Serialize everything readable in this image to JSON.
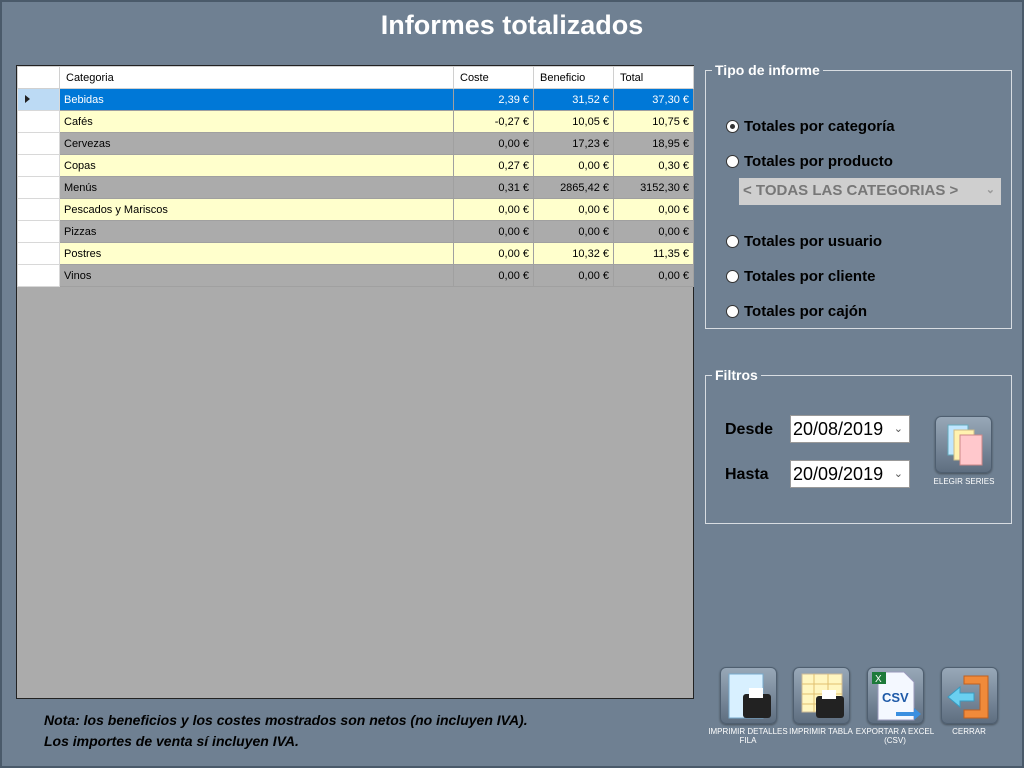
{
  "title": "Informes totalizados",
  "grid": {
    "columns": [
      "Categoria",
      "Coste",
      "Beneficio",
      "Total"
    ],
    "rows": [
      [
        "Bebidas",
        "2,39 €",
        "31,52 €",
        "37,30 €"
      ],
      [
        "Cafés",
        "-0,27 €",
        "10,05 €",
        "10,75 €"
      ],
      [
        "Cervezas",
        "0,00 €",
        "17,23 €",
        "18,95 €"
      ],
      [
        "Copas",
        "0,27 €",
        "0,00 €",
        "0,30 €"
      ],
      [
        "Menús",
        "0,31 €",
        "2865,42 €",
        "3152,30 €"
      ],
      [
        "Pescados y Mariscos",
        "0,00 €",
        "0,00 €",
        "0,00 €"
      ],
      [
        "Pizzas",
        "0,00 €",
        "0,00 €",
        "0,00 €"
      ],
      [
        "Postres",
        "0,00 €",
        "10,32 €",
        "11,35 €"
      ],
      [
        "Vinos",
        "0,00 €",
        "0,00 €",
        "0,00 €"
      ]
    ],
    "selected_row": 0
  },
  "tipo": {
    "legend": "Tipo de informe",
    "options": [
      "Totales por categoría",
      "Totales por producto",
      "Totales por usuario",
      "Totales por cliente",
      "Totales por cajón"
    ],
    "selected": 0,
    "category_select": "< TODAS LAS CATEGORIAS >"
  },
  "filtros": {
    "legend": "Filtros",
    "desde_label": "Desde",
    "desde": "20/08/2019",
    "hasta_label": "Hasta",
    "hasta": "20/09/2019",
    "series_button": "ELEGIR SERIES"
  },
  "actions": [
    "IMPRIMIR DETALLES FILA",
    "IMPRIMIR TABLA",
    "EXPORTAR A EXCEL (CSV)",
    "CERRAR"
  ],
  "note": [
    "Nota: los beneficios y los costes mostrados son netos (no incluyen IVA).",
    "Los importes de venta sí incluyen IVA."
  ]
}
